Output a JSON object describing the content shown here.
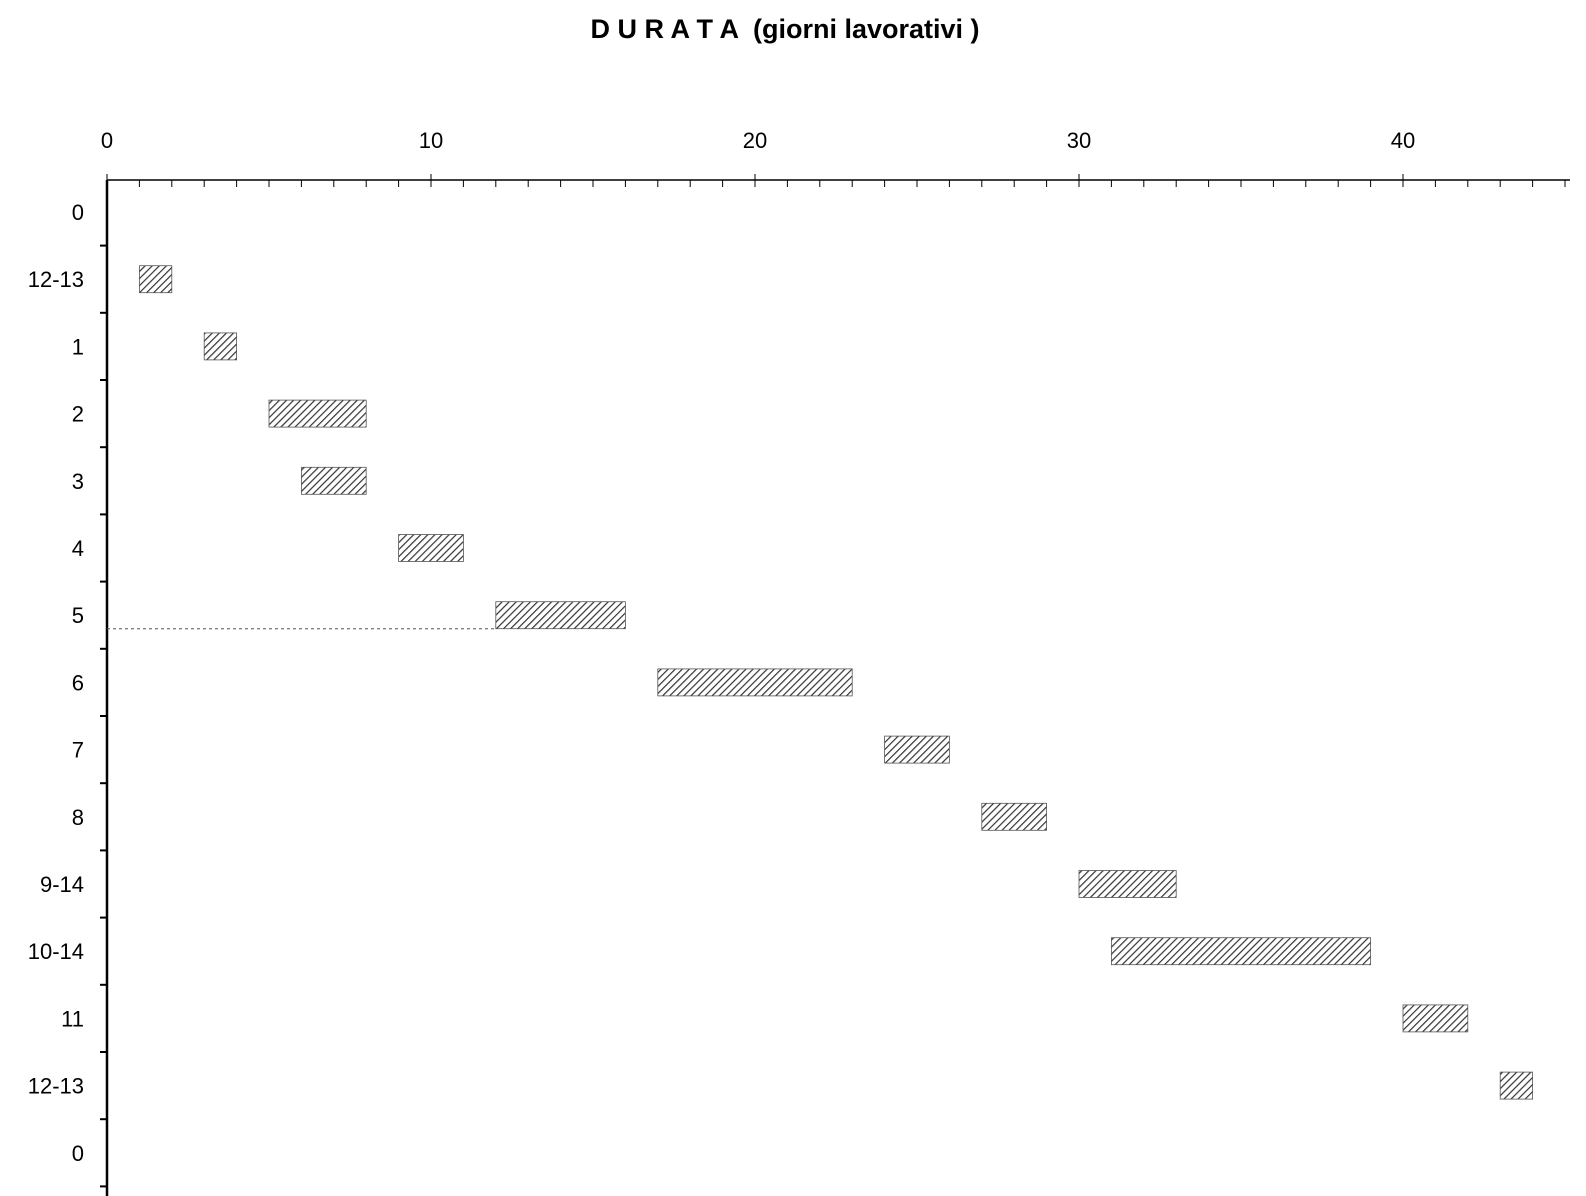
{
  "chart_data": {
    "type": "gantt",
    "title": "D U R A T A  (giorni lavorativi )",
    "x_axis": {
      "position": "top",
      "range": [
        0,
        45
      ],
      "major_ticks": [
        0,
        10,
        20,
        30,
        40
      ],
      "minor_tick_step": 1
    },
    "categories": [
      "0",
      "12-13",
      "1",
      "2",
      "3",
      "4",
      "5",
      "6",
      "7",
      "8",
      "9-14",
      "10-14",
      "11",
      "12-13",
      "0"
    ],
    "tasks": [
      {
        "label": "12-13",
        "start": 1,
        "end": 2
      },
      {
        "label": "1",
        "start": 3,
        "end": 4
      },
      {
        "label": "2",
        "start": 5,
        "end": 8
      },
      {
        "label": "3",
        "start": 6,
        "end": 8
      },
      {
        "label": "4",
        "start": 9,
        "end": 11
      },
      {
        "label": "5",
        "start": 12,
        "end": 16
      },
      {
        "label": "6",
        "start": 17,
        "end": 23
      },
      {
        "label": "7",
        "start": 24,
        "end": 26
      },
      {
        "label": "8",
        "start": 27,
        "end": 29
      },
      {
        "label": "9-14",
        "start": 30,
        "end": 33
      },
      {
        "label": "10-14",
        "start": 31,
        "end": 39
      },
      {
        "label": "11",
        "start": 40,
        "end": 42
      },
      {
        "label": "12-13",
        "start": 43,
        "end": 44
      }
    ],
    "reference_line": {
      "style": "dotted",
      "row": "5",
      "from": 0,
      "to": 12
    },
    "bar_fill": "diagonal hatch",
    "colors": {
      "bar_hatch": "#333333",
      "bar_background": "#ffffff",
      "axis": "#000000"
    },
    "grid": false,
    "legend": "none"
  }
}
